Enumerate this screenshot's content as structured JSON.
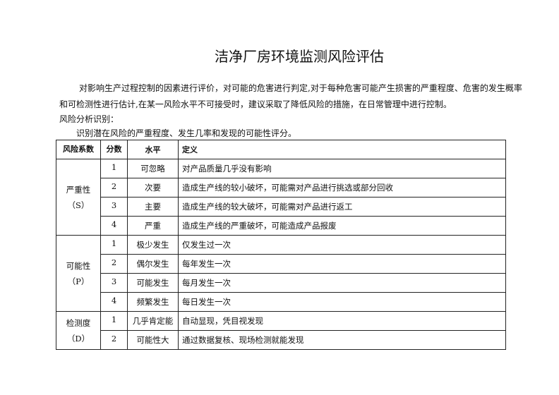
{
  "title": "洁净厂房环境监测风险评估",
  "paragraphs": [
    "对影响生产过程控制的因素进行评价，对可能的危害进行判定,对于每种危害可能产生损害的严重程度、危害的发生概率",
    "和可检测性进行估计,在某一风险水平不可接受时，建议采取了降低风险的措施，在日常管理中进行控制。",
    "风险分析识别：",
    "识别潜在风险的严重程度、发生几率和发现的可能性评分。"
  ],
  "table": {
    "headers": [
      "风险系数",
      "分数",
      "水平",
      "定义"
    ],
    "groups": [
      {
        "name": "严重性",
        "code": "（S）",
        "rows": [
          {
            "score": "1",
            "level": "可忽略",
            "definition": "对产品质量几乎没有影响"
          },
          {
            "score": "2",
            "level": "次要",
            "definition": "造成生产线的较小破坏，可能需对产品进行挑选或部分回收"
          },
          {
            "score": "3",
            "level": "主要",
            "definition": "造成生产线的较大破坏，可能需对产品进行返工"
          },
          {
            "score": "4",
            "level": "严重",
            "definition": "造成生产线的严重破坏，可能造成产品报废"
          }
        ]
      },
      {
        "name": "可能性",
        "code": "（P）",
        "rows": [
          {
            "score": "1",
            "level": "极少发生",
            "definition": "仅发生过一次"
          },
          {
            "score": "2",
            "level": "偶尔发生",
            "definition": "每年发生一次"
          },
          {
            "score": "3",
            "level": "可能发生",
            "definition": "每月发生一次"
          },
          {
            "score": "4",
            "level": "频繁发生",
            "definition": "每日发生一次"
          }
        ]
      },
      {
        "name": "检测度",
        "code": "（D）",
        "rows": [
          {
            "score": "1",
            "level": "几乎肯定能",
            "definition": "自动显现，凭目视发现"
          },
          {
            "score": "2",
            "level": "可能性大",
            "definition": "通过数据复核、现场检测就能发现"
          }
        ]
      }
    ]
  }
}
